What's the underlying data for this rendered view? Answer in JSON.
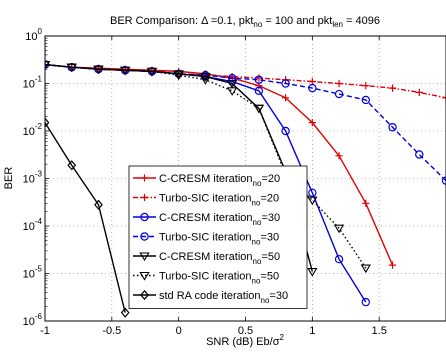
{
  "chart_data": {
    "type": "line",
    "title": {
      "main": "BER Comparison: Δ =0.1, pkt",
      "sub1": "no",
      "mid": " = 100 and pkt",
      "sub2": "len",
      "end": " = 4096"
    },
    "xlabel": {
      "main": "SNR (dB) Eb/σ",
      "sup": "2"
    },
    "ylabel": "BER",
    "xlim": [
      -1,
      2
    ],
    "ylim": [
      1e-06,
      1
    ],
    "yscale": "log",
    "x_ticks": [
      "-1",
      "-0.5",
      "0",
      "0.5",
      "1",
      "1.5"
    ],
    "y_ticks": [
      {
        "base": "10",
        "exp": "-6"
      },
      {
        "base": "10",
        "exp": "-5"
      },
      {
        "base": "10",
        "exp": "-4"
      },
      {
        "base": "10",
        "exp": "-3"
      },
      {
        "base": "10",
        "exp": "-2"
      },
      {
        "base": "10",
        "exp": "-1"
      },
      {
        "base": "10",
        "exp": "0"
      }
    ],
    "grid": true,
    "legend_position": "lower-center",
    "series": [
      {
        "name": "C-CRESM iteration",
        "sub": "no",
        "suffix": "=20",
        "color": "#e00000",
        "dash": "solid",
        "marker": "plus",
        "x": [
          -1,
          -0.8,
          -0.6,
          -0.4,
          -0.2,
          0,
          0.2,
          0.4,
          0.6,
          0.8,
          1.0,
          1.2,
          1.4,
          1.6
        ],
        "y": [
          0.25,
          0.22,
          0.21,
          0.2,
          0.19,
          0.18,
          0.16,
          0.13,
          0.09,
          0.05,
          0.015,
          0.003,
          0.0003,
          1.5e-05
        ]
      },
      {
        "name": "Turbo-SIC iteration",
        "sub": "no",
        "suffix": "=20",
        "color": "#e00000",
        "dash": "dashdot",
        "marker": "plus",
        "x": [
          -1,
          -0.8,
          -0.6,
          -0.4,
          -0.2,
          0,
          0.2,
          0.4,
          0.6,
          0.8,
          1.0,
          1.2,
          1.4,
          1.6,
          1.8,
          2.0
        ],
        "y": [
          0.25,
          0.22,
          0.2,
          0.19,
          0.18,
          0.16,
          0.15,
          0.14,
          0.13,
          0.12,
          0.11,
          0.1,
          0.09,
          0.08,
          0.065,
          0.05
        ]
      },
      {
        "name": "C-CRESM iteration",
        "sub": "no",
        "suffix": "=30",
        "color": "#0000e0",
        "dash": "solid",
        "marker": "circle",
        "x": [
          -1,
          -0.8,
          -0.6,
          -0.4,
          -0.2,
          0,
          0.2,
          0.4,
          0.6,
          0.8,
          1.0,
          1.2,
          1.4
        ],
        "y": [
          0.25,
          0.22,
          0.2,
          0.19,
          0.18,
          0.16,
          0.14,
          0.11,
          0.07,
          0.01,
          0.0005,
          2e-05,
          2.5e-06
        ]
      },
      {
        "name": "Turbo-SIC iteration",
        "sub": "no",
        "suffix": "=30",
        "color": "#0000e0",
        "dash": "dashed",
        "marker": "circle",
        "x": [
          -1,
          -0.8,
          -0.6,
          -0.4,
          -0.2,
          0,
          0.2,
          0.4,
          0.6,
          0.8,
          1.0,
          1.2,
          1.4,
          1.6,
          1.8,
          2.0
        ],
        "y": [
          0.25,
          0.22,
          0.2,
          0.19,
          0.18,
          0.16,
          0.15,
          0.13,
          0.12,
          0.1,
          0.08,
          0.06,
          0.045,
          0.012,
          0.0032,
          0.0009
        ]
      },
      {
        "name": "C-CRESM iteration",
        "sub": "no",
        "suffix": "=50",
        "color": "#000000",
        "dash": "solid",
        "marker": "triangle-down",
        "x": [
          -1,
          -0.8,
          -0.6,
          -0.4,
          -0.2,
          0,
          0.2,
          0.4,
          0.6,
          0.8,
          1.0
        ],
        "y": [
          0.25,
          0.22,
          0.2,
          0.19,
          0.18,
          0.16,
          0.14,
          0.1,
          0.03,
          0.0014,
          1.1e-05
        ]
      },
      {
        "name": "Turbo-SIC iteration",
        "sub": "no",
        "suffix": "=50",
        "color": "#000000",
        "dash": "dotted",
        "marker": "triangle-down",
        "x": [
          -1,
          -0.8,
          -0.6,
          -0.4,
          -0.2,
          0,
          0.2,
          0.4,
          0.6,
          0.8,
          1.0,
          1.2,
          1.4
        ],
        "y": [
          0.25,
          0.22,
          0.2,
          0.19,
          0.18,
          0.15,
          0.12,
          0.07,
          0.03,
          0.0012,
          0.00035,
          9e-05,
          1.3e-05
        ]
      },
      {
        "name": "std RA code iteration",
        "sub": "no",
        "suffix": "=30",
        "color": "#000000",
        "dash": "solid",
        "marker": "diamond",
        "x": [
          -1,
          -0.8,
          -0.6,
          -0.4
        ],
        "y": [
          0.015,
          0.0019,
          0.00028,
          1.5e-06
        ]
      }
    ]
  }
}
